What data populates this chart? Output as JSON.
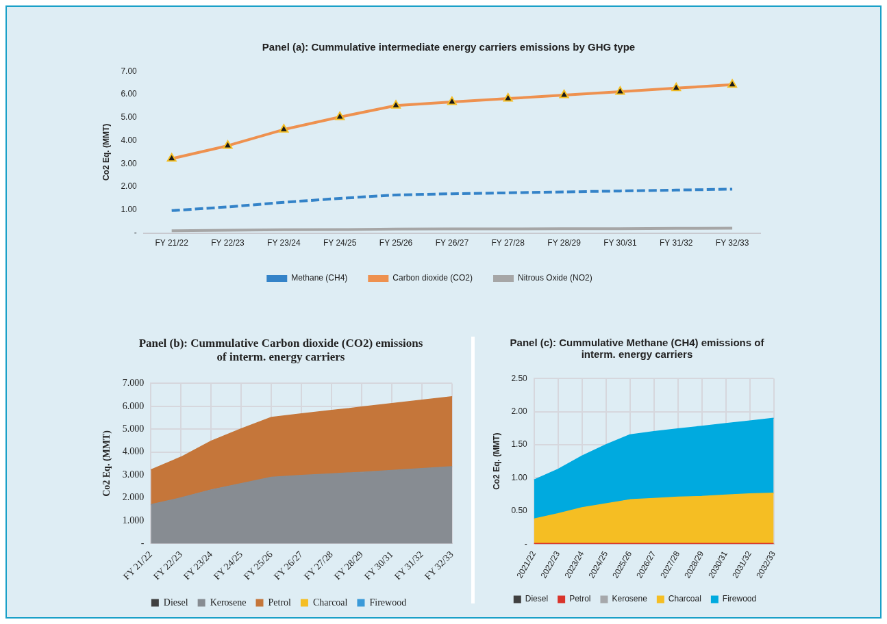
{
  "chart_data": [
    {
      "type": "line",
      "title": "Panel (a): Cummulative intermediate energy carriers emissions by GHG type",
      "ylabel": "Co2 Eq. (MMT)",
      "categories": [
        "FY 21/22",
        "FY 22/23",
        "FY 23/24",
        "FY 24/25",
        "FY 25/26",
        "FY 26/27",
        "FY 27/28",
        "FY 28/29",
        "FY 30/31",
        "FY 31/32",
        "FY 32/33"
      ],
      "series": [
        {
          "name": "Methane (CH4)",
          "color": "#3483c8",
          "line_style": "dashed",
          "marker": "none",
          "values": [
            0.97,
            1.13,
            1.33,
            1.5,
            1.65,
            1.7,
            1.74,
            1.78,
            1.82,
            1.86,
            1.9
          ]
        },
        {
          "name": "Carbon dioxide (CO2)",
          "color": "#ee914f",
          "line_style": "solid",
          "marker": "triangle",
          "values": [
            3.22,
            3.78,
            4.48,
            5.02,
            5.52,
            5.67,
            5.82,
            5.97,
            6.12,
            6.27,
            6.42
          ]
        },
        {
          "name": "Nitrous Oxide (NO2)",
          "color": "#a6a6a6",
          "line_style": "solid",
          "marker": "none",
          "values": [
            0.1,
            0.12,
            0.14,
            0.15,
            0.17,
            0.18,
            0.18,
            0.19,
            0.19,
            0.2,
            0.21
          ]
        }
      ],
      "ylim": [
        0,
        7
      ],
      "yticks": [
        {
          "value": 0,
          "label": "-"
        },
        {
          "value": 1,
          "label": "1.00"
        },
        {
          "value": 2,
          "label": "2.00"
        },
        {
          "value": 3,
          "label": "3.00"
        },
        {
          "value": 4,
          "label": "4.00"
        },
        {
          "value": 5,
          "label": "5.00"
        },
        {
          "value": 6,
          "label": "6.00"
        },
        {
          "value": 7,
          "label": "7.00"
        }
      ],
      "grid": false,
      "legend": "bottom"
    },
    {
      "type": "area",
      "stacked": true,
      "title": "Panel (b): Cummulative  Carbon dioxide (CO2) emissions of interm. energy carriers",
      "ylabel": "Co2 Eq. (MMT)",
      "categories": [
        "FY 21/22",
        "FY 22/23",
        "FY 23/24",
        "FY 24/25",
        "FY 25/26",
        "FY 26/27",
        "FY 27/28",
        "FY 28/29",
        "FY 30/31",
        "FY 31/32",
        "FY 32/33"
      ],
      "series": [
        {
          "name": "Diesel",
          "color": "#404040",
          "values": [
            null,
            null,
            null,
            null,
            null,
            null,
            null,
            null,
            null,
            null,
            null
          ]
        },
        {
          "name": "Kerosene",
          "color": "#878c92",
          "values": [
            1.7,
            2.0,
            2.35,
            2.62,
            2.9,
            2.98,
            3.05,
            3.12,
            3.2,
            3.28,
            3.36
          ]
        },
        {
          "name": "Petrol",
          "color": "#c5763a",
          "values": [
            1.52,
            1.78,
            2.13,
            2.4,
            2.62,
            2.69,
            2.77,
            2.85,
            2.92,
            2.99,
            3.06
          ]
        },
        {
          "name": "Charcoal",
          "color": "#f5be23",
          "values": [
            null,
            null,
            null,
            null,
            null,
            null,
            null,
            null,
            null,
            null,
            null
          ]
        },
        {
          "name": "Firewood",
          "color": "#3a9ad9",
          "values": [
            null,
            null,
            null,
            null,
            null,
            null,
            null,
            null,
            null,
            null,
            null
          ]
        }
      ],
      "ylim": [
        0,
        7
      ],
      "yticks": [
        {
          "value": 0,
          "label": "-"
        },
        {
          "value": 1,
          "label": "1.000"
        },
        {
          "value": 2,
          "label": "2.000"
        },
        {
          "value": 3,
          "label": "3.000"
        },
        {
          "value": 4,
          "label": "4.000"
        },
        {
          "value": 5,
          "label": "5.000"
        },
        {
          "value": 6,
          "label": "6.000"
        },
        {
          "value": 7,
          "label": "7.000"
        }
      ],
      "grid": true,
      "legend": "bottom"
    },
    {
      "type": "area",
      "stacked": true,
      "title": "Panel (c): Cummulative  Methane (CH4) emissions of interm. energy carriers",
      "ylabel": "Co2 Eq. (MMT)",
      "categories": [
        "2021/22",
        "2022/23",
        "2023/24",
        "2024/25",
        "2025/26",
        "2026/27",
        "2027/28",
        "2028/29",
        "2030/31",
        "2031/32",
        "2032/33"
      ],
      "series": [
        {
          "name": "Diesel",
          "color": "#404040",
          "values": [
            null,
            null,
            null,
            null,
            null,
            null,
            null,
            null,
            null,
            null,
            null
          ]
        },
        {
          "name": "Petrol",
          "color": "#d9342b",
          "values": [
            0.01,
            0.01,
            0.01,
            0.01,
            0.01,
            0.01,
            0.01,
            0.01,
            0.01,
            0.01,
            0.01
          ]
        },
        {
          "name": "Kerosene",
          "color": "#a6a8ab",
          "values": [
            null,
            null,
            null,
            null,
            null,
            null,
            null,
            null,
            null,
            null,
            null
          ]
        },
        {
          "name": "Charcoal",
          "color": "#f5be23",
          "values": [
            0.37,
            0.45,
            0.54,
            0.6,
            0.66,
            0.68,
            0.7,
            0.71,
            0.73,
            0.75,
            0.76
          ]
        },
        {
          "name": "Firewood",
          "color": "#00aadf",
          "values": [
            0.59,
            0.67,
            0.78,
            0.89,
            0.98,
            1.01,
            1.03,
            1.06,
            1.08,
            1.1,
            1.13
          ]
        }
      ],
      "ylim": [
        0,
        2.5
      ],
      "yticks": [
        {
          "value": 0,
          "label": "-"
        },
        {
          "value": 0.5,
          "label": "0.50"
        },
        {
          "value": 1,
          "label": "1.00"
        },
        {
          "value": 1.5,
          "label": "1.50"
        },
        {
          "value": 2,
          "label": "2.00"
        },
        {
          "value": 2.5,
          "label": "2.50"
        }
      ],
      "grid": true,
      "legend": "bottom"
    }
  ]
}
